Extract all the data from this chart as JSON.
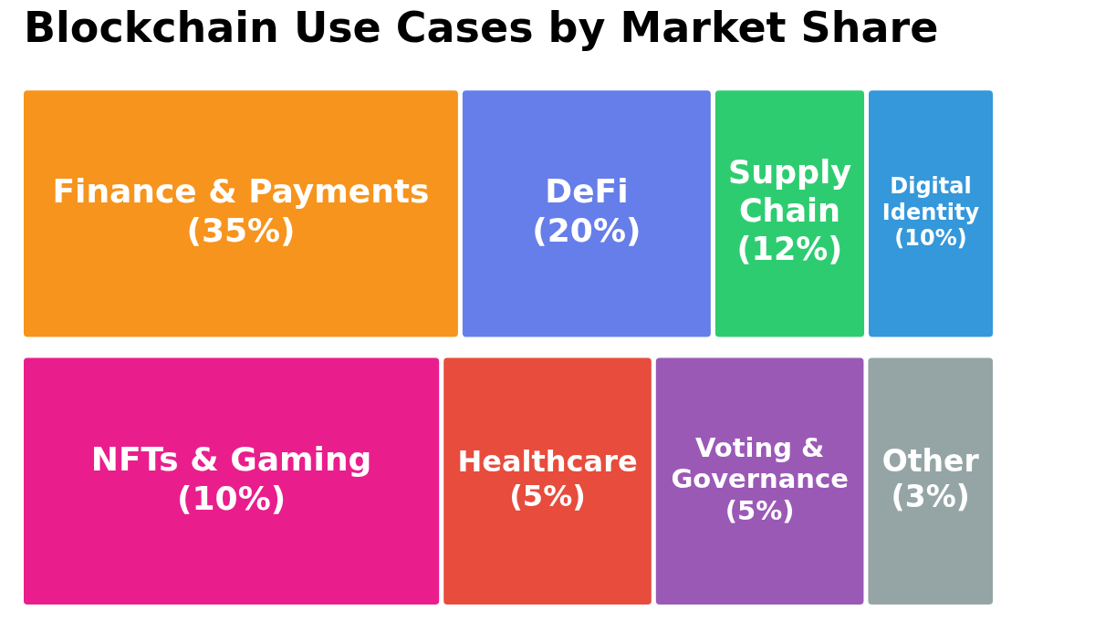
{
  "chart_data": {
    "type": "other",
    "title": "Blockchain Use Cases by Market Share",
    "categories": [
      "Finance & Payments",
      "DeFi",
      "Supply Chain",
      "Digital Identity",
      "NFTs & Gaming",
      "Healthcare",
      "Voting & Governance",
      "Other"
    ],
    "values": [
      35,
      20,
      12,
      10,
      10,
      5,
      5,
      3
    ],
    "value_labels": [
      "(35%)",
      "(20%)",
      "(12%)",
      "(10%)",
      "(10%)",
      "(5%)",
      "(5%)",
      "(3%)"
    ],
    "colors": [
      "#f7941d",
      "#667eea",
      "#2ecc71",
      "#3498db",
      "#e91e8c",
      "#e74c3c",
      "#9b59b6",
      "#95a5a6"
    ]
  }
}
